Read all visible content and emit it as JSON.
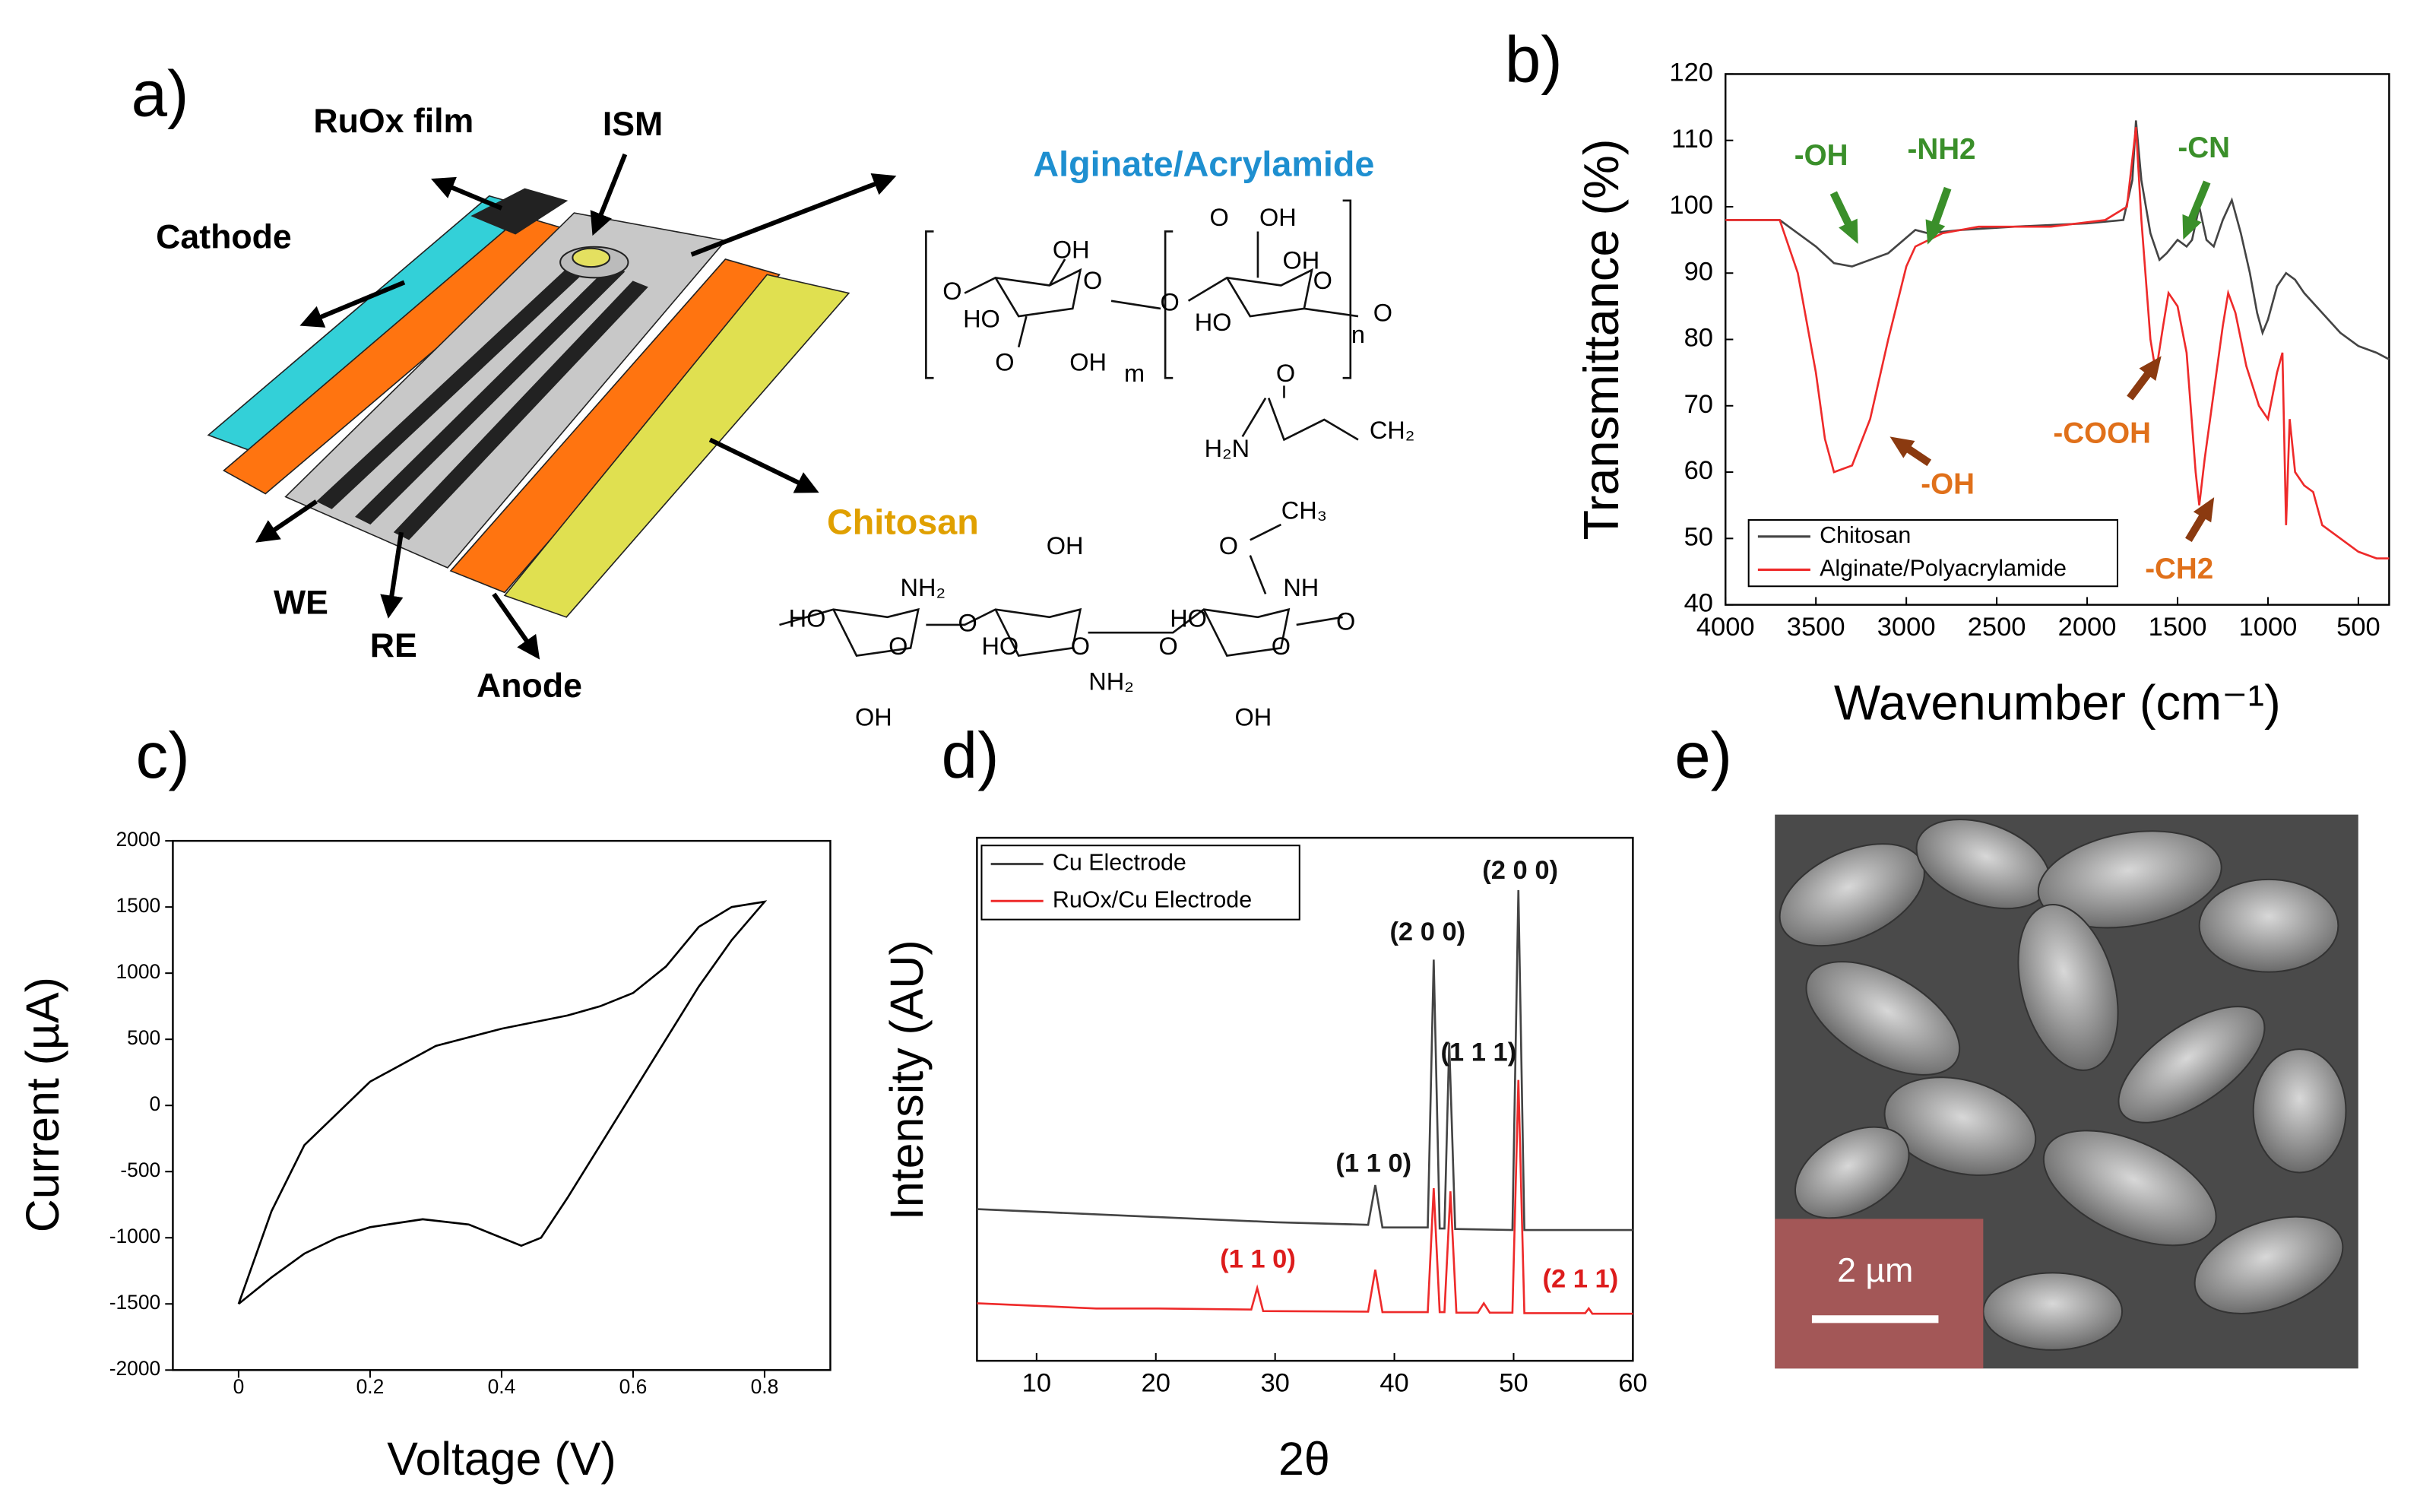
{
  "panels": [
    "a)",
    "b)",
    "c)",
    "d)",
    "e)"
  ],
  "diagram": {
    "device_labels": [
      "Cathode",
      "RuOx film",
      "ISM",
      "WE",
      "RE",
      "Anode"
    ],
    "alginate_title": "Alginate/Acrylamide",
    "chitosan_title": "Chitosan",
    "alginate_atoms": [
      "O",
      "OH",
      "O",
      "HO",
      "O",
      "OH",
      "m",
      "O",
      "O",
      "OH",
      "OH",
      "O",
      "HO",
      "n",
      "O"
    ],
    "acrylamide_atoms": [
      "O",
      "H₂N",
      "CH₂"
    ],
    "chitosan_atoms": [
      "CH₃",
      "O",
      "NH",
      "OH",
      "NH₂",
      "HO",
      "O",
      "O",
      "HO",
      "O",
      "NH₂",
      "HO",
      "O",
      "O",
      "OH",
      "OH",
      "O"
    ]
  },
  "chart_data": [
    {
      "type": "line",
      "xlabel": "Wavenumber (cm⁻¹)",
      "ylabel": "Transmittance (%)",
      "xlim": [
        4000,
        330
      ],
      "ylim": [
        40,
        120
      ],
      "xticks": [
        4000,
        3500,
        3000,
        2500,
        2000,
        1500,
        1000,
        500
      ],
      "yticks": [
        40,
        50,
        60,
        70,
        80,
        90,
        100,
        110,
        120
      ],
      "legend": "lower left",
      "series": [
        {
          "name": "Chitosan",
          "color": "#444444",
          "x": [
            4000,
            3700,
            3500,
            3400,
            3300,
            3100,
            2950,
            2880,
            2700,
            2400,
            2000,
            1800,
            1750,
            1730,
            1700,
            1650,
            1600,
            1560,
            1500,
            1450,
            1420,
            1380,
            1340,
            1300,
            1250,
            1200,
            1150,
            1100,
            1060,
            1030,
            1000,
            950,
            900,
            850,
            800,
            700,
            600,
            500,
            400,
            330
          ],
          "values": [
            98,
            98,
            94,
            91.5,
            91,
            93,
            96.5,
            96,
            96.5,
            97,
            97.5,
            98,
            104,
            113,
            104,
            96,
            92,
            93,
            95,
            94,
            95,
            100,
            95,
            94,
            98,
            101,
            96,
            90,
            84,
            81,
            83,
            88,
            90,
            89,
            87,
            84,
            81,
            79,
            78,
            77
          ]
        },
        {
          "name": "Alginate/Polyacrylamide",
          "color": "#ee2a2a",
          "x": [
            4000,
            3700,
            3600,
            3500,
            3450,
            3400,
            3300,
            3200,
            3100,
            3000,
            2950,
            2800,
            2600,
            2200,
            1900,
            1780,
            1730,
            1700,
            1650,
            1620,
            1580,
            1550,
            1500,
            1450,
            1400,
            1380,
            1350,
            1300,
            1250,
            1220,
            1180,
            1120,
            1050,
            1000,
            950,
            920,
            900,
            880,
            850,
            800,
            750,
            700,
            600,
            500,
            400,
            330
          ],
          "values": [
            98,
            98,
            90,
            75,
            65,
            60,
            61,
            68,
            80,
            91,
            94,
            96,
            97,
            97,
            98,
            100,
            112,
            98,
            80,
            75,
            82,
            87,
            85,
            78,
            60,
            55,
            62,
            72,
            82,
            87,
            84,
            76,
            70,
            68,
            75,
            78,
            52,
            68,
            60,
            58,
            57,
            52,
            50,
            48,
            47,
            47
          ]
        }
      ],
      "annotations": [
        {
          "text": "-OH",
          "color": "#3a8f2a"
        },
        {
          "text": "-NH2",
          "color": "#3a8f2a"
        },
        {
          "text": "-CN",
          "color": "#3a8f2a"
        },
        {
          "text": "-COOH",
          "color": "#e0701a"
        },
        {
          "text": "-OH",
          "color": "#e0701a"
        },
        {
          "text": "-CH2",
          "color": "#e0701a"
        }
      ]
    },
    {
      "type": "line",
      "xlabel": "Voltage (V)",
      "ylabel": "Current (µA)",
      "xlim": [
        -0.1,
        0.9
      ],
      "ylim": [
        -2000,
        2000
      ],
      "xticks": [
        0,
        0.2,
        0.4,
        0.6,
        0.8
      ],
      "yticks": [
        -2000,
        -1500,
        -1000,
        -500,
        0,
        500,
        1000,
        1500,
        2000
      ],
      "series": [
        {
          "color": "#000000",
          "x": [
            0,
            0.05,
            0.1,
            0.15,
            0.2,
            0.28,
            0.35,
            0.4,
            0.43,
            0.46,
            0.5,
            0.55,
            0.6,
            0.65,
            0.7,
            0.75,
            0.8,
            0.8,
            0.75,
            0.7,
            0.65,
            0.6,
            0.55,
            0.5,
            0.4,
            0.3,
            0.2,
            0.1,
            0.05,
            0
          ],
          "values": [
            -1500,
            -1300,
            -1120,
            -1000,
            -920,
            -860,
            -900,
            -1000,
            -1060,
            -1000,
            -700,
            -300,
            100,
            500,
            900,
            1250,
            1540,
            1540,
            1500,
            1350,
            1050,
            850,
            750,
            680,
            580,
            450,
            180,
            -300,
            -800,
            -1500
          ]
        }
      ]
    },
    {
      "type": "line",
      "xlabel": "2θ",
      "ylabel": "Intensity (AU)",
      "xlim": [
        5,
        60
      ],
      "ylim": [
        0,
        100
      ],
      "xticks": [
        10,
        20,
        30,
        40,
        50,
        60
      ],
      "legend": "upper left",
      "series": [
        {
          "name": "Cu Electrode",
          "color": "#444444",
          "x": [
            5,
            10,
            20,
            30,
            37.8,
            38.4,
            39,
            42.8,
            43.3,
            43.8,
            44.2,
            44.6,
            45.1,
            49.9,
            50.4,
            50.9,
            55,
            60
          ],
          "values": [
            29,
            28.5,
            27.5,
            26.5,
            26,
            33.6,
            25.5,
            25.5,
            76.7,
            25.3,
            25.3,
            60.8,
            25.2,
            25,
            90,
            25,
            25,
            25
          ]
        },
        {
          "name": "RuOx/Cu Electrode",
          "color": "#ee2a2a",
          "x": [
            5,
            10,
            15,
            20,
            28,
            28.5,
            29,
            37.8,
            38.4,
            39,
            42.8,
            43.3,
            43.8,
            44.2,
            44.7,
            45.2,
            47,
            47.5,
            48,
            49.9,
            50.4,
            50.9,
            56,
            56.3,
            56.6,
            60
          ],
          "values": [
            11,
            10.5,
            10,
            10,
            9.8,
            13.9,
            9.5,
            9.4,
            17.4,
            9.3,
            9.3,
            33,
            9.3,
            9.3,
            32.4,
            9.2,
            9.2,
            11,
            9.2,
            9.2,
            53.7,
            9.1,
            9.1,
            10,
            9,
            9
          ]
        }
      ],
      "annotations": [
        {
          "text": "(1 1 0)",
          "color": "#111111"
        },
        {
          "text": "(2 0 0)",
          "color": "#111111"
        },
        {
          "text": "(1 1 1)",
          "color": "#111111"
        },
        {
          "text": "(2 0 0)",
          "color": "#111111"
        },
        {
          "text": "(1 1 0)",
          "color": "#dd1c1c"
        },
        {
          "text": "(2 1 1)",
          "color": "#dd1c1c"
        }
      ]
    }
  ],
  "micrograph": {
    "scale_label": "2 µm"
  }
}
